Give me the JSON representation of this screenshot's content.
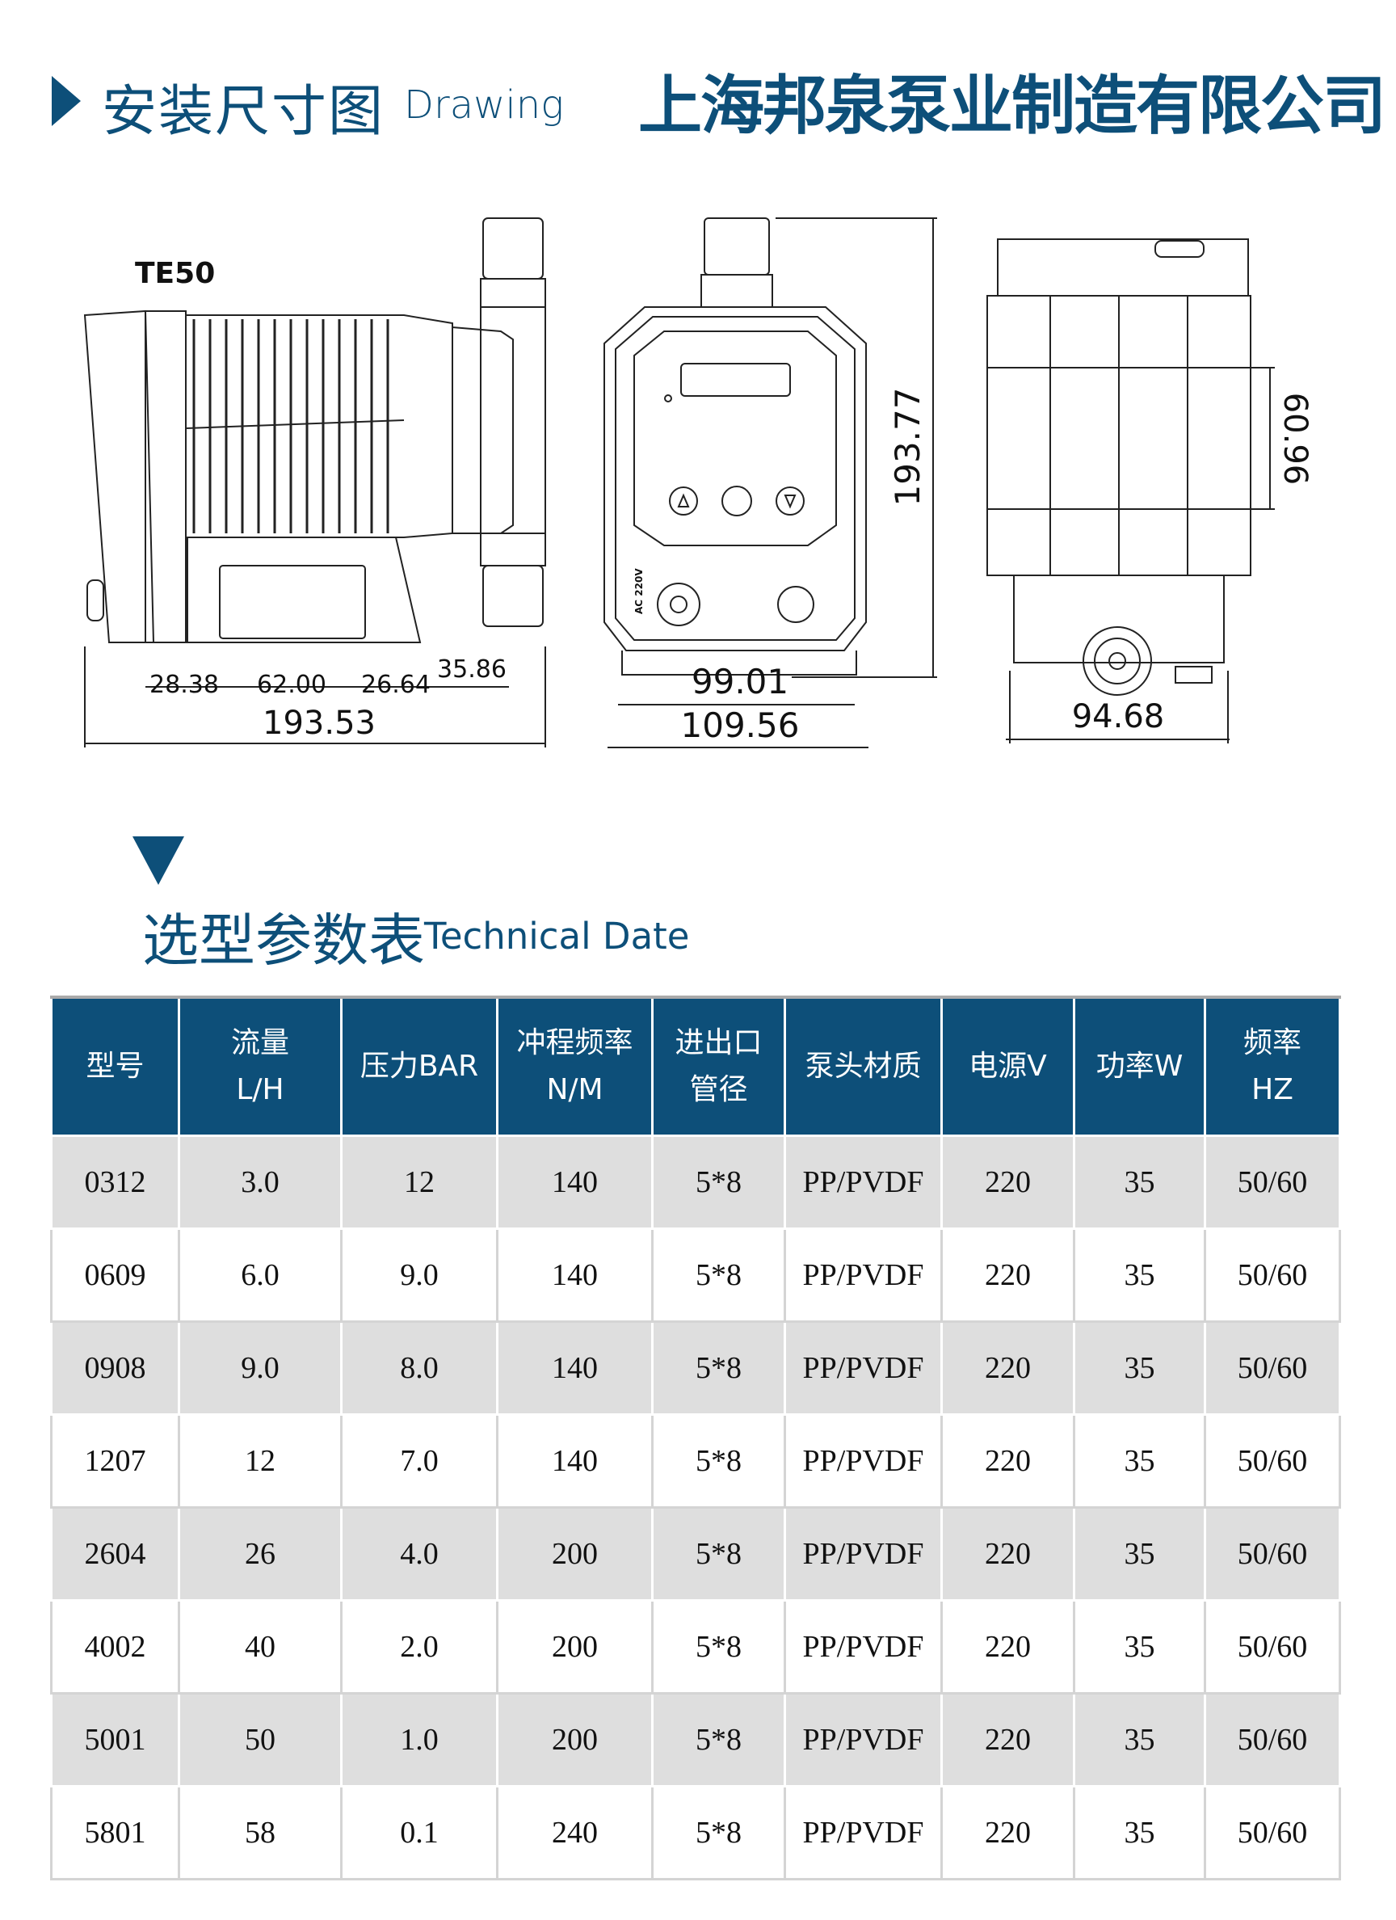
{
  "section1": {
    "title_cn": "安装尺寸图",
    "title_en": "Drawing"
  },
  "company": "上海邦泉泵业制造有限公司",
  "drawing": {
    "model": "TE50",
    "side_dims": [
      "28.38",
      "62.00",
      "26.64",
      "35.86",
      "193.53"
    ],
    "front_dims": [
      "99.01",
      "109.56",
      "193.77"
    ],
    "front_label": "AC 220V",
    "back_dims": [
      "94.68",
      "60.96"
    ]
  },
  "section2": {
    "title_cn": "选型参数表",
    "title_en": "Technical Date"
  },
  "colors": {
    "brand": "#0d4f79",
    "row_alt": "#dedede"
  },
  "table": {
    "headers": [
      [
        "型号"
      ],
      [
        "流量",
        "L/H"
      ],
      [
        "压力BAR"
      ],
      [
        "冲程频率",
        "N/M"
      ],
      [
        "进出口",
        "管径"
      ],
      [
        "泵头材质"
      ],
      [
        "电源V"
      ],
      [
        "功率W"
      ],
      [
        "频率",
        "HZ"
      ]
    ],
    "rows": [
      [
        "0312",
        "3.0",
        "12",
        "140",
        "5*8",
        "PP/PVDF",
        "220",
        "35",
        "50/60"
      ],
      [
        "0609",
        "6.0",
        "9.0",
        "140",
        "5*8",
        "PP/PVDF",
        "220",
        "35",
        "50/60"
      ],
      [
        "0908",
        "9.0",
        "8.0",
        "140",
        "5*8",
        "PP/PVDF",
        "220",
        "35",
        "50/60"
      ],
      [
        "1207",
        "12",
        "7.0",
        "140",
        "5*8",
        "PP/PVDF",
        "220",
        "35",
        "50/60"
      ],
      [
        "2604",
        "26",
        "4.0",
        "200",
        "5*8",
        "PP/PVDF",
        "220",
        "35",
        "50/60"
      ],
      [
        "4002",
        "40",
        "2.0",
        "200",
        "5*8",
        "PP/PVDF",
        "220",
        "35",
        "50/60"
      ],
      [
        "5001",
        "50",
        "1.0",
        "200",
        "5*8",
        "PP/PVDF",
        "220",
        "35",
        "50/60"
      ],
      [
        "5801",
        "58",
        "0.1",
        "240",
        "5*8",
        "PP/PVDF",
        "220",
        "35",
        "50/60"
      ]
    ]
  }
}
